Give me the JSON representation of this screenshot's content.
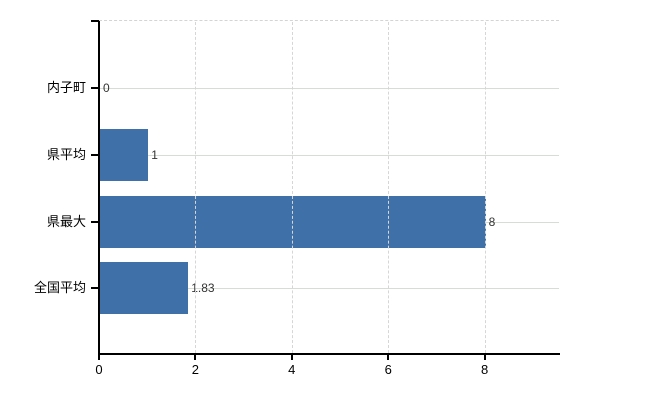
{
  "chart_data": {
    "type": "bar",
    "orientation": "horizontal",
    "title": "",
    "categories": [
      "内子町",
      "県平均",
      "県最大",
      "全国平均"
    ],
    "values": [
      0,
      1,
      8,
      1.83
    ],
    "value_labels": [
      "0",
      "1",
      "8",
      "1.83"
    ],
    "xlabel": "",
    "ylabel": "",
    "xlim": [
      0,
      9.5
    ],
    "x_ticks": [
      0,
      2,
      4,
      6,
      8
    ],
    "x_tick_labels": [
      "0",
      "2",
      "4",
      "6",
      "8"
    ],
    "grid": true,
    "legend": false,
    "colors": {
      "bar": "#4070a8",
      "axis": "#000000",
      "grid_horizontal": "#d7ddd3",
      "grid_vertical": "#d6d6d6",
      "category_text": "#000000",
      "tick_text": "#000000",
      "value_text": "#333333"
    }
  }
}
